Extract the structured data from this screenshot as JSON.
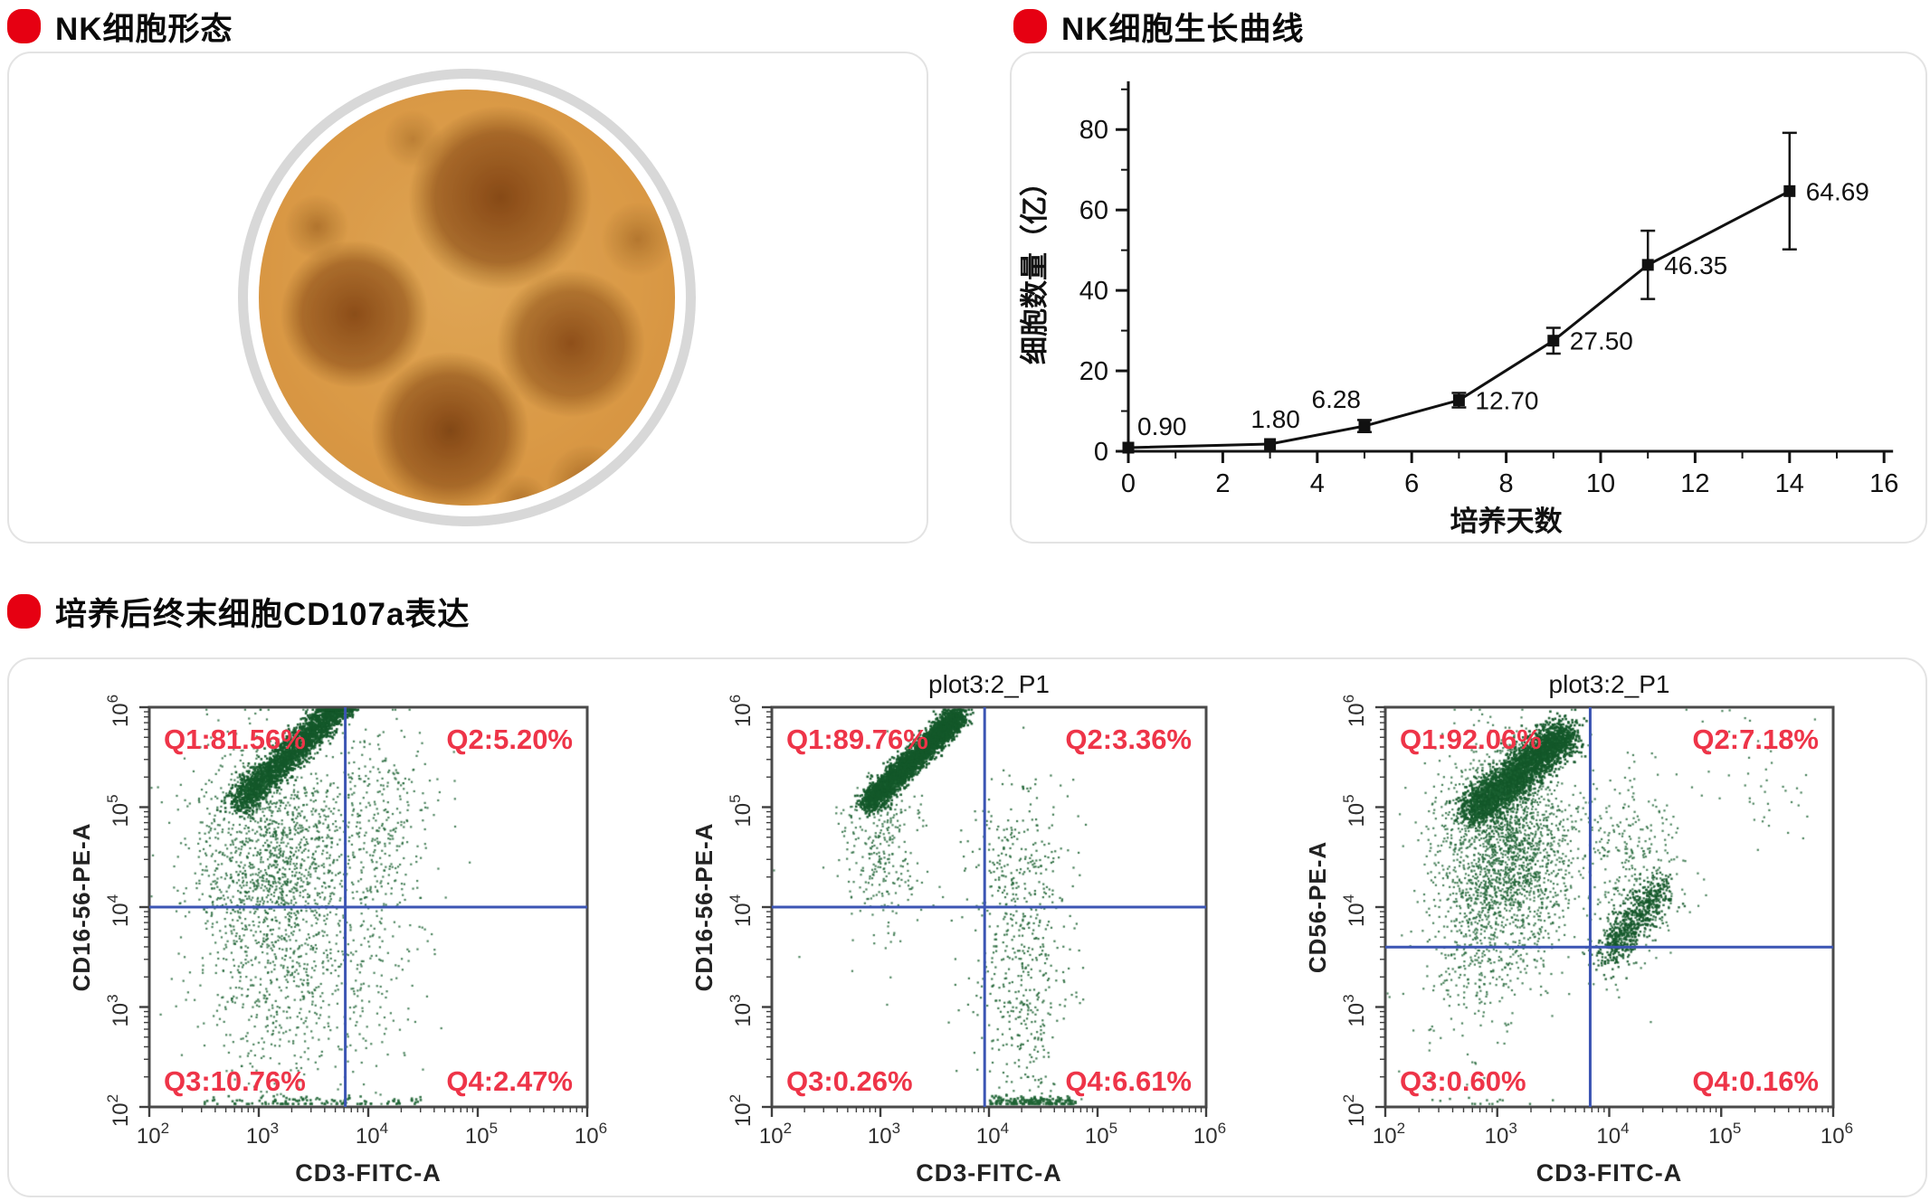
{
  "page": {
    "background": "#ffffff",
    "accent_color": "#e60012"
  },
  "sections": [
    {
      "id": "morphology",
      "title": "NK细胞形态"
    },
    {
      "id": "growth",
      "title": "NK细胞生长曲线"
    },
    {
      "id": "cd107a",
      "title": "培养后终末细胞CD107a表达"
    }
  ],
  "style": {
    "dot_color": "#1d6333",
    "dot_core_color": "#14582a",
    "quadrant_label_color": "#ee3448",
    "gate_color": "#3c55b4",
    "axis_color": "#3f3f3f",
    "frame_color": "#4a4a4a",
    "tick_text_color": "#2e2e2e"
  },
  "chart_data": [
    {
      "id": "growth_curve",
      "type": "line",
      "title": "NK细胞生长曲线",
      "xlabel": "培养天数",
      "ylabel": "细胞数量（亿）",
      "xlim": [
        0,
        16
      ],
      "ylim": [
        0,
        92
      ],
      "xticks": [
        0,
        2,
        4,
        6,
        8,
        10,
        12,
        14,
        16
      ],
      "yticks": [
        0,
        20,
        40,
        60,
        80
      ],
      "x_minor_step": 1,
      "y_minor_step": 10,
      "grid": false,
      "marker": "square",
      "line_color": "#111111",
      "points": [
        {
          "x": 0,
          "y": 0.9,
          "err": 0,
          "label": "0.90",
          "label_pos": "up-right"
        },
        {
          "x": 3,
          "y": 1.8,
          "err": 0,
          "label": "1.80",
          "label_pos": "up"
        },
        {
          "x": 5,
          "y": 6.28,
          "err": 1.5,
          "label": "6.28",
          "label_pos": "up-left"
        },
        {
          "x": 7,
          "y": 12.7,
          "err": 1.8,
          "label": "12.70",
          "label_pos": "right"
        },
        {
          "x": 9,
          "y": 27.5,
          "err": 3.2,
          "label": "27.50",
          "label_pos": "right"
        },
        {
          "x": 11,
          "y": 46.35,
          "err": 8.5,
          "label": "46.35",
          "label_pos": "right"
        },
        {
          "x": 14,
          "y": 64.69,
          "err": 14.5,
          "label": "64.69",
          "label_pos": "right"
        }
      ]
    },
    {
      "id": "flow1",
      "type": "scatter",
      "title": "",
      "xlabel": "CD3-FITC-A",
      "ylabel": "CD16-56-PE-A",
      "log_decades": [
        2,
        3,
        4,
        5,
        6
      ],
      "gate_x_log": 3.79,
      "gate_y_log": 4.0,
      "quadrant_labels": {
        "q1": "Q1:81.56%",
        "q2": "Q2:5.20%",
        "q3": "Q3:10.76%",
        "q4": "Q4:2.47%"
      },
      "seed": 101,
      "clusters": [
        {
          "kind": "streak",
          "n": 2400,
          "x0": 2.83,
          "y0": 5.05,
          "x1": 3.78,
          "y1": 6.06,
          "sigma": 0.07,
          "s": 2.6,
          "a": 0.95
        },
        {
          "kind": "blob",
          "n": 1500,
          "cx": 3.15,
          "cy": 4.45,
          "sx": 0.38,
          "sy": 0.6,
          "s": 2.2,
          "a": 0.8
        },
        {
          "kind": "blob",
          "n": 420,
          "cx": 3.25,
          "cy": 3.05,
          "sx": 0.42,
          "sy": 0.5,
          "s": 2.2,
          "a": 0.8
        },
        {
          "kind": "blob",
          "n": 300,
          "cx": 4.12,
          "cy": 4.85,
          "sx": 0.24,
          "sy": 0.55,
          "s": 2.2,
          "a": 0.8
        },
        {
          "kind": "blob",
          "n": 90,
          "cx": 4.15,
          "cy": 3.3,
          "sx": 0.25,
          "sy": 0.6,
          "s": 2.2,
          "a": 0.8
        },
        {
          "kind": "strip",
          "n": 110,
          "x0": 2.5,
          "x1": 4.5,
          "y": 2.05,
          "sigma": 0.03,
          "s": 2.6,
          "a": 0.9
        }
      ]
    },
    {
      "id": "flow2",
      "type": "scatter",
      "title": "plot3:2_P1",
      "xlabel": "CD3-FITC-A",
      "ylabel": "CD16-56-PE-A",
      "log_decades": [
        2,
        3,
        4,
        5,
        6
      ],
      "gate_x_log": 3.96,
      "gate_y_log": 4.0,
      "quadrant_labels": {
        "q1": "Q1:89.76%",
        "q2": "Q2:3.36%",
        "q3": "Q3:0.26%",
        "q4": "Q4:6.61%"
      },
      "seed": 202,
      "clusters": [
        {
          "kind": "streak",
          "n": 3300,
          "x0": 2.88,
          "y0": 5.02,
          "x1": 3.72,
          "y1": 5.92,
          "sigma": 0.055,
          "s": 2.6,
          "a": 0.95
        },
        {
          "kind": "blob",
          "n": 280,
          "cx": 3.02,
          "cy": 4.55,
          "sx": 0.18,
          "sy": 0.38,
          "s": 2.2,
          "a": 0.8
        },
        {
          "kind": "blob",
          "n": 430,
          "cx": 4.3,
          "cy": 3.3,
          "sx": 0.22,
          "sy": 0.65,
          "s": 2.2,
          "a": 0.85
        },
        {
          "kind": "blob",
          "n": 170,
          "cx": 4.3,
          "cy": 4.6,
          "sx": 0.22,
          "sy": 0.42,
          "s": 2.2,
          "a": 0.85
        },
        {
          "kind": "strip",
          "n": 150,
          "x0": 4.0,
          "x1": 4.8,
          "y": 2.05,
          "sigma": 0.03,
          "s": 2.8,
          "a": 0.9
        },
        {
          "kind": "blob",
          "n": 12,
          "cx": 2.9,
          "cy": 3.6,
          "sx": 0.45,
          "sy": 0.6,
          "s": 2.2,
          "a": 0.8
        }
      ]
    },
    {
      "id": "flow3",
      "type": "scatter",
      "title": "plot3:2_P1",
      "xlabel": "CD3-FITC-A",
      "ylabel": "CD56-PE-A",
      "log_decades": [
        2,
        3,
        4,
        5,
        6
      ],
      "gate_x_log": 3.83,
      "gate_y_log": 3.6,
      "quadrant_labels": {
        "q1": "Q1:92.06%",
        "q2": "Q2:7.18%",
        "q3": "Q3:0.60%",
        "q4": "Q4:0.16%"
      },
      "seed": 303,
      "clusters": [
        {
          "kind": "streak",
          "n": 2900,
          "x0": 2.78,
          "y0": 4.95,
          "x1": 3.62,
          "y1": 5.75,
          "sigma": 0.09,
          "s": 2.6,
          "a": 0.95
        },
        {
          "kind": "blob",
          "n": 1700,
          "cx": 3.1,
          "cy": 4.7,
          "sx": 0.3,
          "sy": 0.5,
          "s": 2.2,
          "a": 0.8
        },
        {
          "kind": "blob",
          "n": 520,
          "cx": 3.0,
          "cy": 3.95,
          "sx": 0.28,
          "sy": 0.4,
          "s": 2.2,
          "a": 0.8
        },
        {
          "kind": "blob",
          "n": 150,
          "cx": 2.72,
          "cy": 3.3,
          "sx": 0.25,
          "sy": 0.55,
          "s": 2.2,
          "a": 0.8
        },
        {
          "kind": "streak",
          "n": 680,
          "x0": 3.98,
          "y0": 3.5,
          "x1": 4.45,
          "y1": 4.2,
          "sigma": 0.09,
          "s": 2.4,
          "a": 0.9
        },
        {
          "kind": "blob",
          "n": 320,
          "cx": 4.2,
          "cy": 4.35,
          "sx": 0.26,
          "sy": 0.48,
          "s": 2.2,
          "a": 0.8
        },
        {
          "kind": "blob",
          "n": 48,
          "cx": 5.3,
          "cy": 5.25,
          "sx": 0.35,
          "sy": 0.35,
          "s": 2.2,
          "a": 0.8
        },
        {
          "kind": "strip",
          "n": 14,
          "x0": 2.3,
          "x1": 3.5,
          "y": 2.05,
          "sigma": 0.02,
          "s": 2.4,
          "a": 0.85
        }
      ]
    }
  ]
}
